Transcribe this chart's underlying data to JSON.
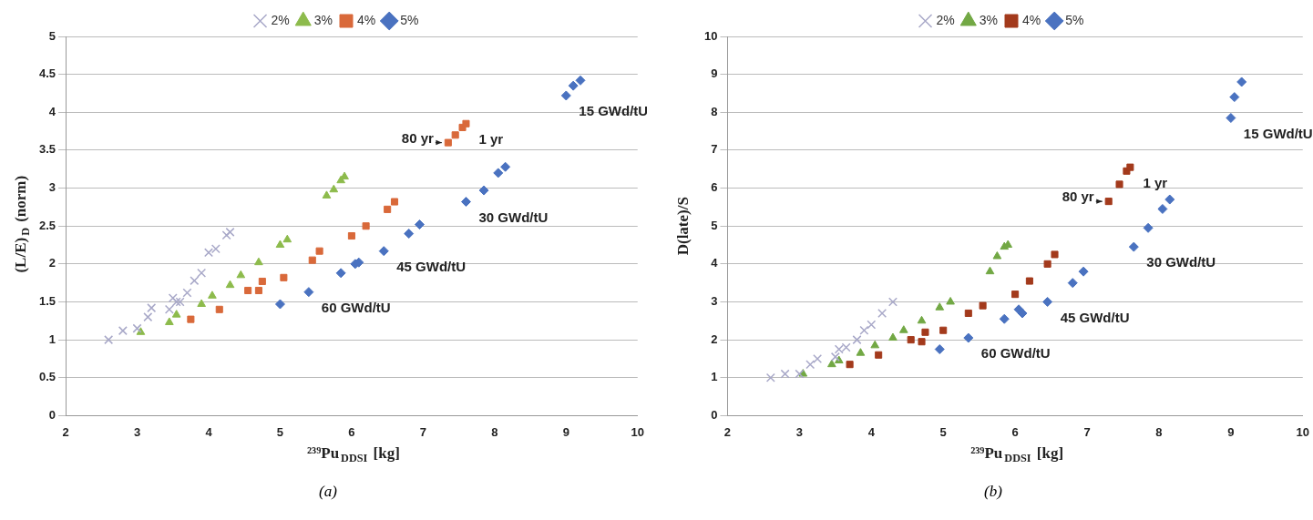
{
  "chart_data": [
    {
      "type": "scatter",
      "xlabel": "²³⁹Pu$_{DDSI}$ [kg]",
      "ylabel": "(L/E)$_{D}$ (norm)",
      "xlim": [
        2,
        10
      ],
      "xticks": [
        2,
        3,
        4,
        5,
        6,
        7,
        8,
        9,
        10
      ],
      "ylim": [
        0,
        5
      ],
      "yticks": [
        0,
        0.5,
        1,
        1.5,
        2,
        2.5,
        3,
        3.5,
        4,
        4.5,
        5
      ],
      "grid": "y",
      "legend": "top",
      "series": [
        {
          "name": "2%",
          "color": "#a8a8c8",
          "marker": "cross",
          "x": [
            2.6,
            2.8,
            3.0,
            3.15,
            3.2,
            3.45,
            3.5,
            3.55,
            3.6,
            3.7,
            3.8,
            3.9,
            4.0,
            4.1,
            4.25,
            4.3
          ],
          "values": [
            1.0,
            1.12,
            1.15,
            1.3,
            1.42,
            1.4,
            1.55,
            1.5,
            1.5,
            1.62,
            1.78,
            1.88,
            2.15,
            2.2,
            2.38,
            2.42
          ]
        },
        {
          "name": "3%",
          "color": "#8dbb4c",
          "marker": "triangle",
          "x": [
            3.05,
            3.45,
            3.55,
            3.9,
            4.05,
            4.3,
            4.45,
            4.7,
            5.0,
            5.1,
            5.65,
            5.75,
            5.85,
            5.9
          ],
          "values": [
            1.1,
            1.23,
            1.33,
            1.47,
            1.58,
            1.72,
            1.85,
            2.02,
            2.25,
            2.32,
            2.9,
            2.98,
            3.1,
            3.15
          ]
        },
        {
          "name": "4%",
          "color": "#d9693a",
          "marker": "square",
          "x": [
            3.75,
            4.15,
            4.55,
            4.65,
            4.7,
            4.75,
            5.05,
            5.45,
            5.55,
            6.0,
            6.2,
            6.5,
            6.6,
            7.35,
            7.45,
            7.55,
            7.6
          ],
          "values": [
            1.27,
            1.4,
            1.65,
            null,
            1.65,
            1.77,
            1.82,
            2.05,
            2.17,
            2.37,
            2.5,
            2.72,
            2.82,
            3.6,
            3.7,
            3.8,
            3.85
          ]
        },
        {
          "name": "5%",
          "color": "#4a72c0",
          "marker": "diamond",
          "x": [
            5.0,
            5.4,
            5.85,
            6.05,
            6.1,
            6.45,
            6.8,
            6.95,
            7.6,
            7.85,
            8.05,
            8.15,
            9.0,
            9.1,
            9.2
          ],
          "values": [
            1.47,
            1.63,
            1.88,
            2.0,
            2.02,
            2.17,
            2.4,
            2.52,
            2.82,
            2.97,
            3.2,
            3.28,
            4.22,
            4.35,
            4.42
          ]
        }
      ],
      "annotations": [
        {
          "text": "1 yr",
          "x": 7.6,
          "y": 3.85
        },
        {
          "text": "80 yr",
          "x": 7.35,
          "y": 3.6
        },
        {
          "text": "15 GWd/tU",
          "x": 9.0,
          "y": 4.22
        },
        {
          "text": "30 GWd/tU",
          "x": 7.6,
          "y": 2.82
        },
        {
          "text": "45 GWd/tU",
          "x": 6.45,
          "y": 2.17
        },
        {
          "text": "60 GWd/tU",
          "x": 5.4,
          "y": 1.63
        },
        "(a)"
      ]
    },
    {
      "type": "scatter",
      "xlabel": "²³⁹Pu$_{DDSI}$ [kg]",
      "ylabel": "D(late)/S",
      "xlim": [
        2,
        10
      ],
      "xticks": [
        2,
        3,
        4,
        5,
        6,
        7,
        8,
        9,
        10
      ],
      "ylim": [
        0,
        10
      ],
      "yticks": [
        0,
        1,
        2,
        3,
        4,
        5,
        6,
        7,
        8,
        9,
        10
      ],
      "grid": "y",
      "legend": "top",
      "series": [
        {
          "name": "2%",
          "color": "#a8a8c8",
          "marker": "cross",
          "x": [
            2.6,
            2.8,
            3.0,
            3.15,
            3.25,
            3.5,
            3.55,
            3.65,
            3.8,
            3.9,
            4.0,
            4.15,
            4.3
          ],
          "values": [
            1.0,
            1.1,
            1.1,
            1.35,
            1.5,
            1.55,
            1.75,
            1.8,
            2.0,
            2.25,
            2.4,
            2.7,
            3.0
          ]
        },
        {
          "name": "3%",
          "color": "#72a844",
          "marker": "triangle",
          "x": [
            3.05,
            3.45,
            3.55,
            3.85,
            4.05,
            4.3,
            4.45,
            4.7,
            4.95,
            5.1,
            5.65,
            5.75,
            5.85,
            5.9
          ],
          "values": [
            1.1,
            1.35,
            1.45,
            1.65,
            1.85,
            2.05,
            2.25,
            2.5,
            2.85,
            3.0,
            3.8,
            4.2,
            4.45,
            4.5
          ]
        },
        {
          "name": "4%",
          "color": "#a33a1c",
          "marker": "square",
          "x": [
            3.7,
            4.1,
            4.55,
            4.7,
            4.75,
            5.0,
            5.35,
            5.55,
            6.0,
            6.2,
            6.45,
            6.55,
            7.3,
            7.45,
            7.55,
            7.6
          ],
          "values": [
            1.35,
            1.6,
            2.0,
            1.95,
            2.2,
            2.25,
            2.7,
            2.9,
            3.2,
            3.55,
            4.0,
            4.25,
            5.65,
            6.1,
            6.45,
            6.55
          ]
        },
        {
          "name": "5%",
          "color": "#4a72c0",
          "marker": "diamond",
          "x": [
            4.95,
            5.35,
            5.85,
            6.05,
            6.1,
            6.45,
            6.8,
            6.95,
            7.65,
            7.85,
            8.05,
            8.15,
            9.0,
            9.05,
            9.15
          ],
          "values": [
            1.75,
            2.05,
            2.55,
            2.8,
            2.7,
            3.0,
            3.5,
            3.8,
            4.45,
            4.95,
            5.45,
            5.7,
            7.85,
            8.4,
            8.8
          ]
        }
      ],
      "annotations": [
        {
          "text": "1 yr",
          "x": 7.6,
          "y": 6.55
        },
        {
          "text": "80 yr",
          "x": 7.3,
          "y": 5.65
        },
        {
          "text": "15 GWd/tU",
          "x": 9.0,
          "y": 7.85
        },
        {
          "text": "30 GWd/tU",
          "x": 7.65,
          "y": 4.45
        },
        {
          "text": "45 GWd/tU",
          "x": 6.45,
          "y": 3.0
        },
        {
          "text": "60 GWd/tU",
          "x": 5.35,
          "y": 2.05
        },
        "(b)"
      ]
    }
  ]
}
